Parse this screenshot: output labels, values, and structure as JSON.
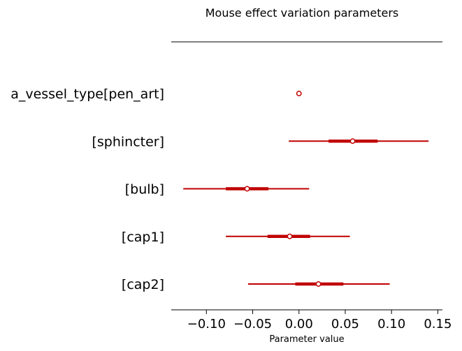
{
  "chart_data": {
    "type": "forest",
    "title": "Mouse effect variation parameters",
    "xlabel": "Parameter value",
    "xlim": [
      -0.138,
      0.155
    ],
    "xticks": [
      -0.1,
      -0.05,
      0.0,
      0.05,
      0.1,
      0.15
    ],
    "xtick_labels": [
      "−0.10",
      "−0.05",
      "0.00",
      "0.05",
      "0.10",
      "0.15"
    ],
    "color": "#c00000",
    "categories": [
      "a_vessel_type[pen_art]",
      "[sphincter]",
      "[bulb]",
      "[cap1]",
      "[cap2]"
    ],
    "estimates": [
      {
        "label": "a_vessel_type[pen_art]",
        "mean": 0.0,
        "hdi_low": null,
        "hdi_high": null,
        "iqr_low": null,
        "iqr_high": null
      },
      {
        "label": "[sphincter]",
        "mean": 0.058,
        "hdi_low": -0.011,
        "hdi_high": 0.14,
        "iqr_low": 0.032,
        "iqr_high": 0.085
      },
      {
        "label": "[bulb]",
        "mean": -0.056,
        "hdi_low": -0.125,
        "hdi_high": 0.011,
        "iqr_low": -0.079,
        "iqr_high": -0.033
      },
      {
        "label": "[cap1]",
        "mean": -0.01,
        "hdi_low": -0.079,
        "hdi_high": 0.055,
        "iqr_low": -0.034,
        "iqr_high": 0.012
      },
      {
        "label": "[cap2]",
        "mean": 0.021,
        "hdi_low": -0.055,
        "hdi_high": 0.098,
        "iqr_low": -0.004,
        "iqr_high": 0.048
      }
    ]
  }
}
